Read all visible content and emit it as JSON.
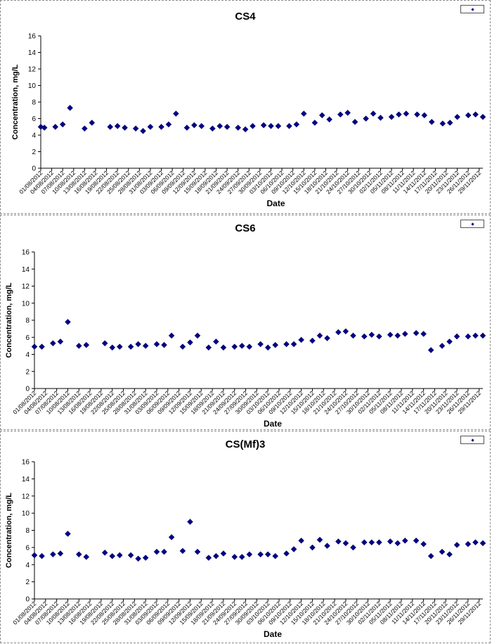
{
  "chart_data": [
    {
      "type": "scatter",
      "title": "CS4",
      "xlabel": "Date",
      "ylabel": "Concentration, mg/L",
      "ylim": [
        0,
        16
      ],
      "yticks": [
        0,
        2,
        4,
        6,
        8,
        10,
        12,
        14,
        16
      ],
      "grid": false,
      "legend_position": "top-right",
      "marker_color": "#00008b",
      "x_tick_labels": [
        "01/08/2012",
        "04/08/2012",
        "07/08/2012",
        "10/08/2012",
        "13/08/2012",
        "16/08/2012",
        "19/08/2012",
        "22/08/2012",
        "25/08/2012",
        "28/08/2012",
        "31/08/2012",
        "03/09/2012",
        "06/09/2012",
        "09/09/2012",
        "12/09/2012",
        "15/09/2012",
        "18/09/2012",
        "21/09/2012",
        "24/09/2012",
        "27/09/2012",
        "30/09/2012",
        "03/10/2012",
        "06/10/2012",
        "09/10/2012",
        "12/10/2012",
        "15/10/2012",
        "18/10/2012",
        "21/10/2012",
        "24/10/2012",
        "27/10/2012",
        "30/10/2012",
        "02/11/2012",
        "05/11/2012",
        "08/11/2012",
        "11/11/2012",
        "14/11/2012",
        "17/11/2012",
        "20/11/2012",
        "23/11/2012",
        "26/11/2012",
        "29/11/2012"
      ],
      "series": [
        {
          "x": [
            "2012-08-01",
            "2012-08-02",
            "2012-08-05",
            "2012-08-07",
            "2012-08-09",
            "2012-08-13",
            "2012-08-15",
            "2012-08-20",
            "2012-08-22",
            "2012-08-24",
            "2012-08-27",
            "2012-08-29",
            "2012-08-31",
            "2012-09-03",
            "2012-09-05",
            "2012-09-07",
            "2012-09-10",
            "2012-09-12",
            "2012-09-14",
            "2012-09-17",
            "2012-09-19",
            "2012-09-21",
            "2012-09-24",
            "2012-09-26",
            "2012-09-28",
            "2012-10-01",
            "2012-10-03",
            "2012-10-05",
            "2012-10-08",
            "2012-10-10",
            "2012-10-12",
            "2012-10-15",
            "2012-10-17",
            "2012-10-19",
            "2012-10-22",
            "2012-10-24",
            "2012-10-26",
            "2012-10-29",
            "2012-10-31",
            "2012-11-02",
            "2012-11-05",
            "2012-11-07",
            "2012-11-09",
            "2012-11-12",
            "2012-11-14",
            "2012-11-16",
            "2012-11-19",
            "2012-11-21",
            "2012-11-23",
            "2012-11-26",
            "2012-11-28",
            "2012-11-30"
          ],
          "y": [
            5.0,
            4.9,
            5.0,
            5.3,
            7.3,
            4.8,
            5.5,
            5.0,
            5.1,
            4.9,
            4.8,
            4.5,
            5.0,
            5.0,
            5.3,
            6.6,
            4.9,
            5.2,
            5.1,
            4.8,
            5.1,
            5.0,
            4.9,
            4.7,
            5.1,
            5.2,
            5.1,
            5.1,
            5.1,
            5.3,
            6.6,
            5.5,
            6.4,
            5.9,
            6.5,
            6.7,
            5.6,
            6.0,
            6.6,
            6.1,
            6.2,
            6.5,
            6.6,
            6.5,
            6.4,
            5.6,
            5.4,
            5.5,
            6.2,
            6.4,
            6.5,
            6.2
          ]
        }
      ]
    },
    {
      "type": "scatter",
      "title": "CS6",
      "xlabel": "Date",
      "ylabel": "Concentration, mg/L",
      "ylim": [
        0,
        16
      ],
      "yticks": [
        0,
        2,
        4,
        6,
        8,
        10,
        12,
        14,
        16
      ],
      "grid": false,
      "legend_position": "top-right",
      "marker_color": "#00008b",
      "x_tick_labels": [
        "01/08/2012",
        "04/08/2012",
        "07/08/2012",
        "10/08/2012",
        "13/08/2012",
        "16/08/2012",
        "19/08/2012",
        "22/08/2012",
        "25/08/2012",
        "28/08/2012",
        "31/08/2012",
        "03/09/2012",
        "06/09/2012",
        "09/09/2012",
        "12/09/2012",
        "15/09/2012",
        "18/09/2012",
        "21/09/2012",
        "24/09/2012",
        "27/09/2012",
        "30/09/2012",
        "03/10/2012",
        "06/10/2012",
        "09/10/2012",
        "12/10/2012",
        "15/10/2012",
        "18/10/2012",
        "21/10/2012",
        "24/10/2012",
        "27/10/2012",
        "30/10/2012",
        "02/11/2012",
        "05/11/2012",
        "08/11/2012",
        "11/11/2012",
        "14/11/2012",
        "17/11/2012",
        "20/11/2012",
        "23/11/2012",
        "26/11/2012",
        "29/11/2012"
      ],
      "series": [
        {
          "x": [
            "2012-08-01",
            "2012-08-03",
            "2012-08-06",
            "2012-08-08",
            "2012-08-10",
            "2012-08-13",
            "2012-08-15",
            "2012-08-20",
            "2012-08-22",
            "2012-08-24",
            "2012-08-27",
            "2012-08-29",
            "2012-08-31",
            "2012-09-03",
            "2012-09-05",
            "2012-09-07",
            "2012-09-10",
            "2012-09-12",
            "2012-09-14",
            "2012-09-17",
            "2012-09-19",
            "2012-09-21",
            "2012-09-24",
            "2012-09-26",
            "2012-09-28",
            "2012-10-01",
            "2012-10-03",
            "2012-10-05",
            "2012-10-08",
            "2012-10-10",
            "2012-10-12",
            "2012-10-15",
            "2012-10-17",
            "2012-10-19",
            "2012-10-22",
            "2012-10-24",
            "2012-10-26",
            "2012-10-29",
            "2012-10-31",
            "2012-11-02",
            "2012-11-05",
            "2012-11-07",
            "2012-11-09",
            "2012-11-12",
            "2012-11-14",
            "2012-11-16",
            "2012-11-19",
            "2012-11-21",
            "2012-11-23",
            "2012-11-26",
            "2012-11-28",
            "2012-11-30"
          ],
          "y": [
            4.9,
            4.9,
            5.3,
            5.5,
            7.8,
            5.0,
            5.1,
            5.3,
            4.8,
            4.9,
            4.9,
            5.2,
            5.0,
            5.2,
            5.1,
            6.2,
            4.9,
            5.4,
            6.2,
            4.8,
            5.5,
            4.8,
            4.9,
            5.0,
            4.9,
            5.2,
            4.8,
            5.1,
            5.2,
            5.2,
            5.7,
            5.6,
            6.2,
            5.9,
            6.6,
            6.7,
            6.2,
            6.1,
            6.3,
            6.1,
            6.3,
            6.2,
            6.4,
            6.5,
            6.4,
            4.5,
            5.0,
            5.5,
            6.1,
            6.1,
            6.2,
            6.2
          ]
        }
      ]
    },
    {
      "type": "scatter",
      "title": "CS(Mf)3",
      "xlabel": "Date",
      "ylabel": "Concentration, mg/L",
      "ylim": [
        0,
        16
      ],
      "yticks": [
        0,
        2,
        4,
        6,
        8,
        10,
        12,
        14,
        16
      ],
      "grid": false,
      "legend_position": "top-right",
      "marker_color": "#00008b",
      "x_tick_labels": [
        "01/08/2012",
        "04/08/2012",
        "07/08/2012",
        "10/08/2012",
        "13/08/2012",
        "16/08/2012",
        "19/08/2012",
        "22/08/2012",
        "25/08/2012",
        "28/08/2012",
        "31/08/2012",
        "03/09/2012",
        "06/09/2012",
        "09/09/2012",
        "12/09/2012",
        "15/09/2012",
        "18/09/2012",
        "21/09/2012",
        "24/09/2012",
        "27/09/2012",
        "30/09/2012",
        "03/10/2012",
        "06/10/2012",
        "09/10/2012",
        "12/10/2012",
        "15/10/2012",
        "18/10/2012",
        "21/10/2012",
        "24/10/2012",
        "27/10/2012",
        "30/10/2012",
        "02/11/2012",
        "05/11/2012",
        "08/11/2012",
        "11/11/2012",
        "14/11/2012",
        "17/11/2012",
        "20/11/2012",
        "23/11/2012",
        "26/11/2012",
        "29/11/2012"
      ],
      "series": [
        {
          "x": [
            "2012-08-01",
            "2012-08-03",
            "2012-08-06",
            "2012-08-08",
            "2012-08-10",
            "2012-08-13",
            "2012-08-15",
            "2012-08-20",
            "2012-08-22",
            "2012-08-24",
            "2012-08-27",
            "2012-08-29",
            "2012-08-31",
            "2012-09-03",
            "2012-09-05",
            "2012-09-07",
            "2012-09-10",
            "2012-09-12",
            "2012-09-14",
            "2012-09-17",
            "2012-09-19",
            "2012-09-21",
            "2012-09-24",
            "2012-09-26",
            "2012-09-28",
            "2012-10-01",
            "2012-10-03",
            "2012-10-05",
            "2012-10-08",
            "2012-10-10",
            "2012-10-12",
            "2012-10-15",
            "2012-10-17",
            "2012-10-19",
            "2012-10-22",
            "2012-10-24",
            "2012-10-26",
            "2012-10-29",
            "2012-10-31",
            "2012-11-02",
            "2012-11-05",
            "2012-11-07",
            "2012-11-09",
            "2012-11-12",
            "2012-11-14",
            "2012-11-16",
            "2012-11-19",
            "2012-11-21",
            "2012-11-23",
            "2012-11-26",
            "2012-11-28",
            "2012-11-30"
          ],
          "y": [
            5.1,
            5.0,
            5.2,
            5.3,
            7.6,
            5.2,
            4.9,
            5.4,
            5.0,
            5.1,
            5.1,
            4.7,
            4.8,
            5.5,
            5.5,
            7.2,
            5.6,
            9.0,
            5.5,
            4.8,
            5.0,
            5.3,
            4.9,
            4.9,
            5.2,
            5.2,
            5.2,
            5.0,
            5.3,
            5.8,
            6.8,
            6.0,
            6.9,
            6.2,
            6.7,
            6.5,
            6.0,
            6.6,
            6.6,
            6.6,
            6.7,
            6.5,
            6.8,
            6.8,
            6.4,
            5.0,
            5.5,
            5.2,
            6.3,
            6.4,
            6.6,
            6.5
          ]
        }
      ]
    }
  ]
}
